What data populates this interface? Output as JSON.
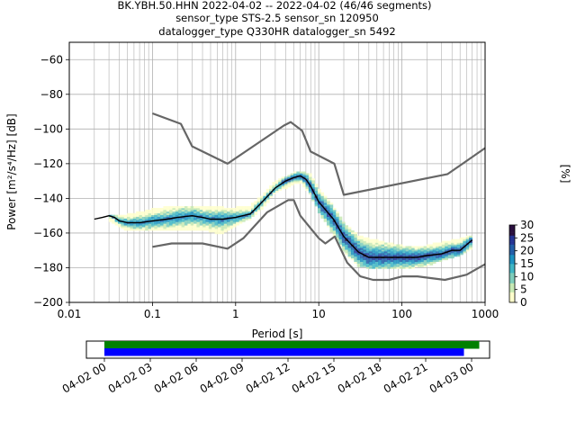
{
  "title": {
    "line1": "BK.YBH.50.HHN   2022-04-02 -- 2022-04-02  (46/46 segments)",
    "line2": "sensor_type STS-2.5 sensor_sn 120950",
    "line3": "datalogger_type Q330HR datalogger_sn 5492"
  },
  "colors": {
    "noise_models": "#666666",
    "mean_line": "#000000",
    "coverage_data": "#008000",
    "coverage_gaps": "#0000ff",
    "grid": "#b0b0b0",
    "colormap": [
      "#ffffcc",
      "#c7e9b4",
      "#7fcdbb",
      "#41b6c4",
      "#1d91c0",
      "#225ea8",
      "#253494",
      "#2a0f3f"
    ]
  },
  "chart_data": [
    {
      "type": "heatmap",
      "title": "",
      "xlabel": "Period [s]",
      "ylabel": "Power [m²/s⁴/Hz] [dB]",
      "xscale": "log",
      "xlim": [
        0.01,
        1000
      ],
      "ylim": [
        -200,
        -50
      ],
      "xticks": [
        0.01,
        0.1,
        1,
        10,
        100,
        1000
      ],
      "xtick_labels": [
        "0.01",
        "0.1",
        "1",
        "10",
        "100",
        "1000"
      ],
      "yticks": [
        -60,
        -80,
        -100,
        -120,
        -140,
        -160,
        -180,
        -200
      ],
      "ytick_labels": [
        "−60",
        "−80",
        "−100",
        "−120",
        "−140",
        "−160",
        "−180",
        "−200"
      ],
      "grid": true,
      "colorbar": {
        "label": "[%]",
        "range": [
          0,
          30
        ],
        "ticks": [
          0,
          5,
          10,
          15,
          20,
          25,
          30
        ],
        "tick_labels": [
          "0",
          "5",
          "10",
          "15",
          "20",
          "25",
          "30"
        ]
      },
      "series": [
        {
          "name": "",
          "style": "mean",
          "x": [
            0.02,
            0.025,
            0.03,
            0.035,
            0.04,
            0.05,
            0.07,
            0.1,
            0.15,
            0.2,
            0.3,
            0.4,
            0.5,
            0.7,
            1.0,
            1.5,
            2.0,
            3.0,
            4.0,
            5.0,
            6.0,
            7.0,
            8.0,
            10.0,
            15.0,
            20.0,
            30.0,
            40.0,
            60.0,
            100.0,
            150.0,
            200.0,
            300.0,
            400.0,
            500.0,
            700.0
          ],
          "y": [
            -152,
            -151,
            -150,
            -151,
            -153,
            -154,
            -154,
            -153,
            -152,
            -151,
            -150,
            -151,
            -152,
            -152,
            -151,
            -149,
            -143,
            -134,
            -130,
            -128,
            -127,
            -129,
            -133,
            -142,
            -152,
            -162,
            -171,
            -174,
            -174,
            -174,
            -174,
            -173,
            -172,
            -170,
            -170,
            -164
          ]
        },
        {
          "name": "",
          "style": "noise-model",
          "x": [
            0.1,
            0.22,
            0.3,
            0.8,
            3.8,
            4.6,
            6.3,
            8.0,
            15.4,
            20.0,
            354.8,
            1000.0
          ],
          "y": [
            -91,
            -97,
            -110,
            -120,
            -98,
            -96,
            -101,
            -113,
            -120,
            -138,
            -126,
            -111
          ]
        },
        {
          "name": "",
          "style": "noise-model",
          "x": [
            0.1,
            0.17,
            0.4,
            0.8,
            1.24,
            2.4,
            4.3,
            5.0,
            6.0,
            10.0,
            12.0,
            15.6,
            21.9,
            31.6,
            45.0,
            70.0,
            101.0,
            154.0,
            328.0,
            600.0,
            1000.0
          ],
          "y": [
            -168,
            -166,
            -166,
            -169,
            -163,
            -148,
            -141,
            -141,
            -150,
            -163,
            -166,
            -162,
            -177,
            -185,
            -187,
            -187,
            -185,
            -185,
            -187,
            -184,
            -178
          ]
        }
      ],
      "density_band": {
        "x": [
          0.03,
          0.05,
          0.1,
          0.2,
          0.4,
          0.7,
          1.0,
          1.5,
          2.0,
          3.0,
          5.0,
          6.0,
          8.0,
          10.0,
          15.0,
          20.0,
          30.0,
          50.0,
          100.0,
          200.0,
          300.0,
          500.0,
          700.0
        ],
        "low": [
          -152,
          -158,
          -158,
          -158,
          -157,
          -160,
          -155,
          -151,
          -146,
          -136,
          -131,
          -130,
          -137,
          -147,
          -160,
          -170,
          -178,
          -180,
          -180,
          -178,
          -175,
          -172,
          -168
        ],
        "high": [
          -150,
          -150,
          -147,
          -145,
          -145,
          -146,
          -146,
          -145,
          -140,
          -131,
          -126,
          -125,
          -127,
          -135,
          -145,
          -155,
          -162,
          -165,
          -168,
          -168,
          -166,
          -164,
          -162
        ]
      }
    },
    {
      "type": "bar",
      "title": "",
      "xlim": [
        "2022-04-02 00:00",
        "2022-04-03 03:00"
      ],
      "xtick_labels": [
        "04-02 00",
        "04-02 03",
        "04-02 06",
        "04-02 09",
        "04-02 12",
        "04-02 15",
        "04-02 18",
        "04-02 21",
        "04-03 00"
      ],
      "bars": [
        {
          "name": "data",
          "start": "2022-04-02 00:00",
          "end": "2022-04-03 00:30",
          "color": "#008000"
        },
        {
          "name": "data",
          "start": "2022-04-02 00:00",
          "end": "2022-04-02 23:30",
          "color": "#0000ff"
        }
      ]
    }
  ]
}
